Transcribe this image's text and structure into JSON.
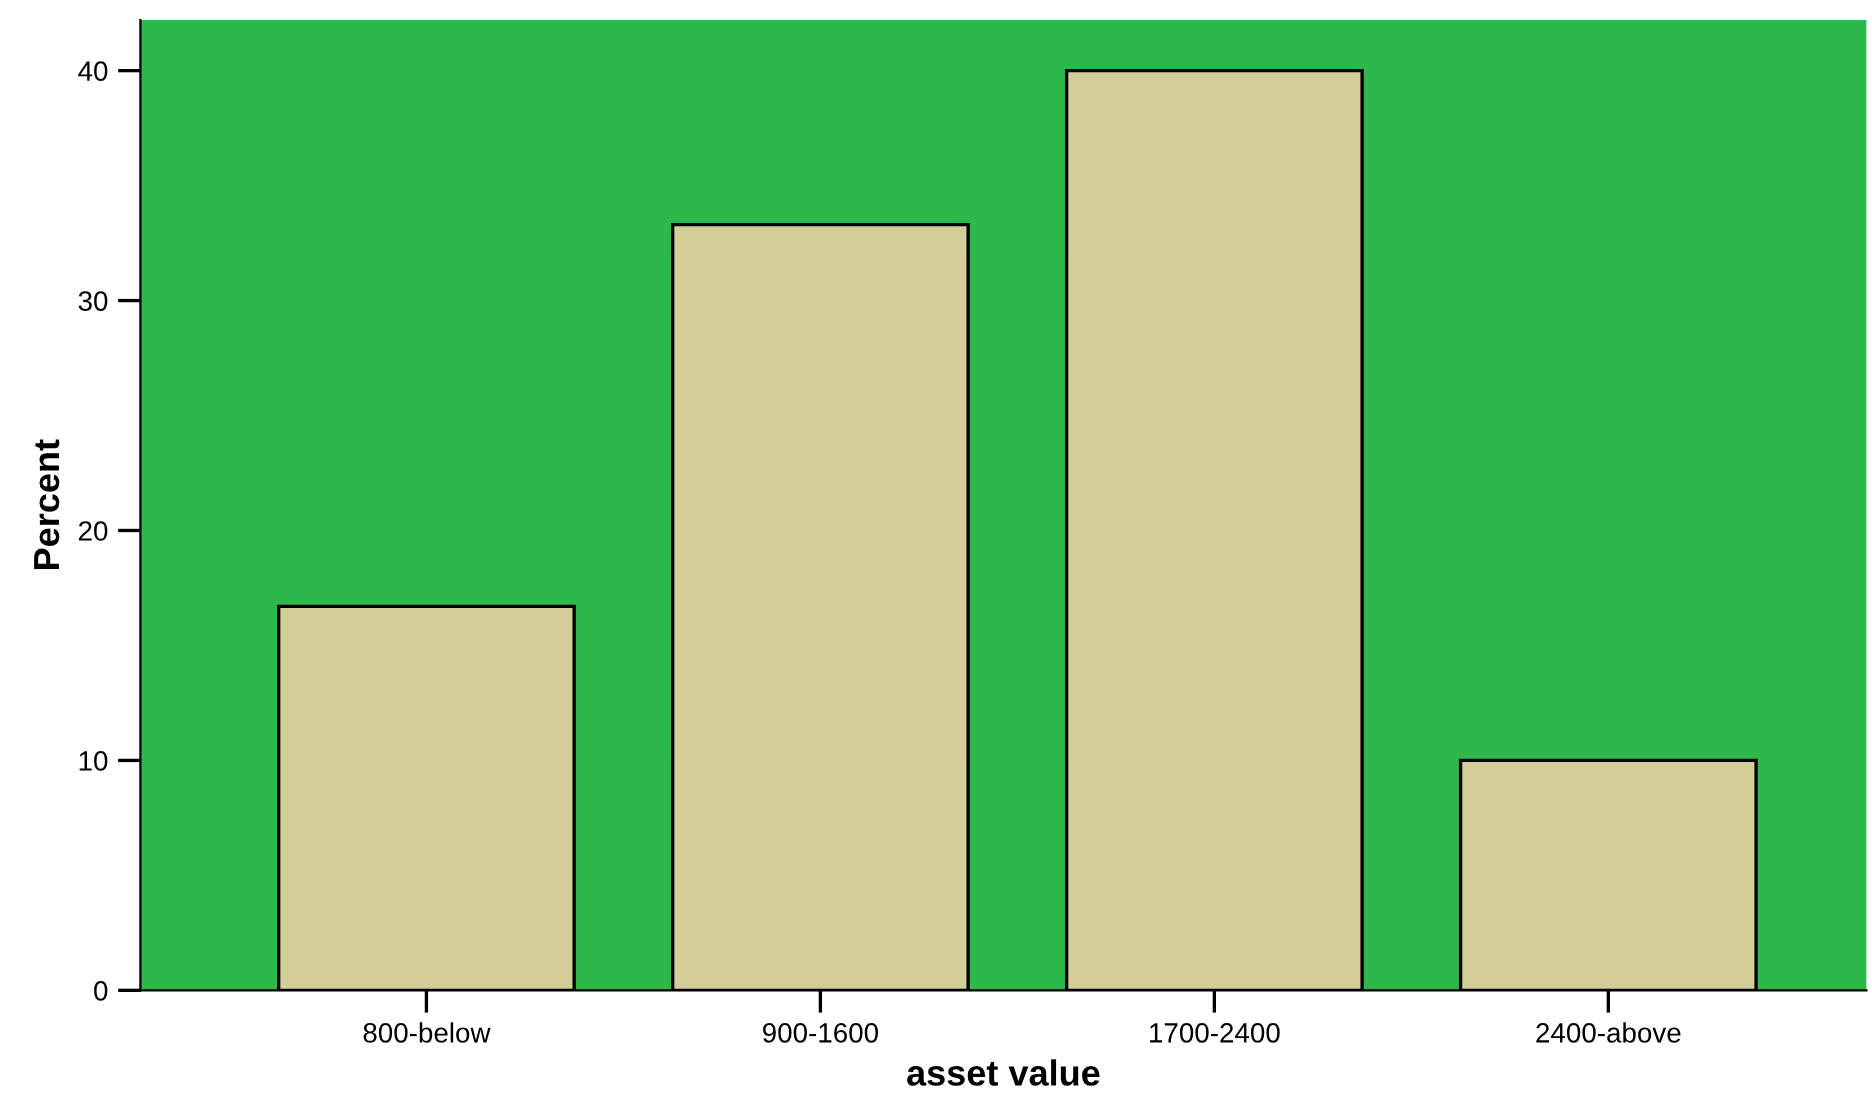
{
  "chart_data": {
    "type": "bar",
    "xlabel": "asset value",
    "ylabel": "Percent",
    "categories": [
      "800-below",
      "900-1600",
      "1700-2400",
      "2400-above"
    ],
    "values": [
      16.7,
      33.3,
      40,
      10
    ],
    "color": "#d3ce98",
    "ylim": [
      0,
      42.2
    ],
    "yticks": [
      0,
      10,
      20,
      30,
      40
    ],
    "grid": false,
    "legend": false
  }
}
